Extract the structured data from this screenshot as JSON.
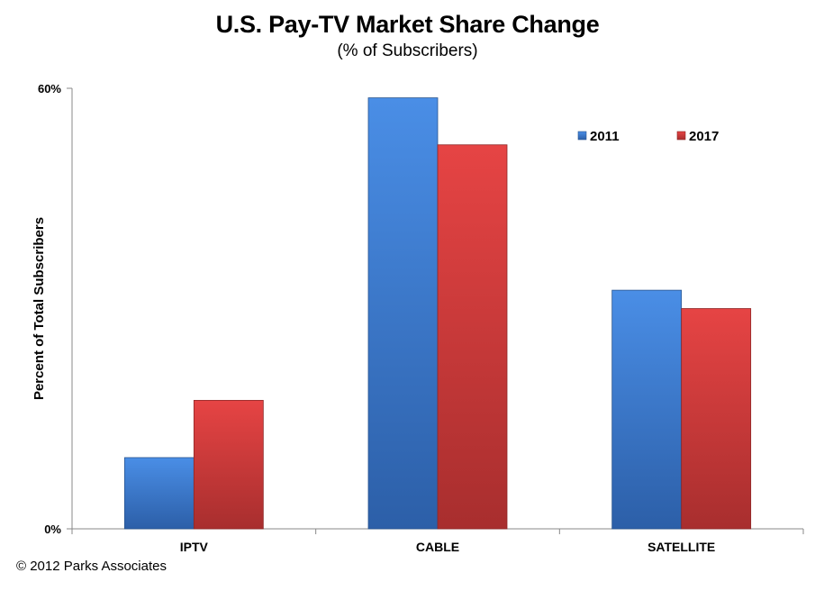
{
  "chart_data": {
    "type": "bar",
    "title": "U.S. Pay-TV Market Share Change",
    "subtitle": "(% of Subscribers)",
    "ylabel": "Percent of Total Subscribers",
    "xlabel": "",
    "ylim": [
      0,
      60
    ],
    "y_ticks": [
      "0%",
      "60%"
    ],
    "y_tick_values": [
      0,
      60
    ],
    "categories": [
      "IPTV",
      "CABLE",
      "SATELLITE"
    ],
    "series": [
      {
        "name": "2011",
        "values": [
          9.7,
          58.7,
          32.5
        ],
        "color": "#3a7bd5"
      },
      {
        "name": "2017",
        "values": [
          17.5,
          52.3,
          30.0
        ],
        "color": "#d93b3b"
      }
    ],
    "legend_position": "top-right",
    "grid": false
  },
  "footer": {
    "copyright": "© 2012 Parks Associates"
  }
}
